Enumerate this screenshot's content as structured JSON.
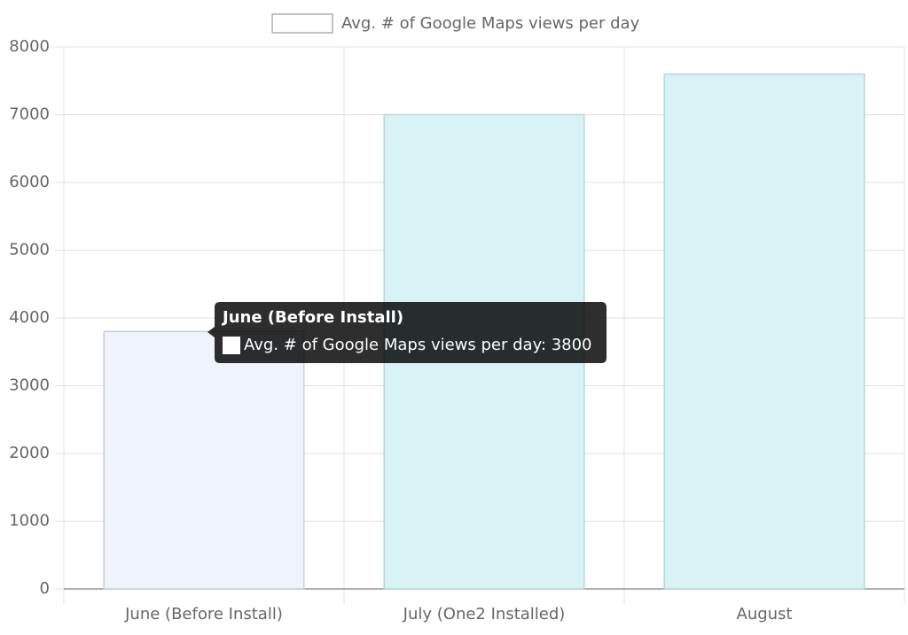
{
  "chart_data": {
    "type": "bar",
    "categories": [
      "June (Before Install)",
      "July (One2 Installed)",
      "August"
    ],
    "series": [
      {
        "name": "Avg. # of Google Maps views per day",
        "colors": [
          "#eff3fb",
          "#d9f2f6",
          "#d9f2f6"
        ],
        "border_colors": [
          "#c9ced9",
          "#b3d8de",
          "#b3d8de"
        ],
        "values": [
          3800,
          7000,
          7600
        ]
      }
    ],
    "ylim": [
      0,
      8000
    ],
    "yticks": [
      0,
      1000,
      2000,
      3000,
      4000,
      5000,
      6000,
      7000,
      8000
    ],
    "grid": true,
    "legend": "top",
    "tooltip": {
      "title": "June (Before Install)",
      "text": "Avg. # of Google Maps views per day: 3800"
    }
  }
}
